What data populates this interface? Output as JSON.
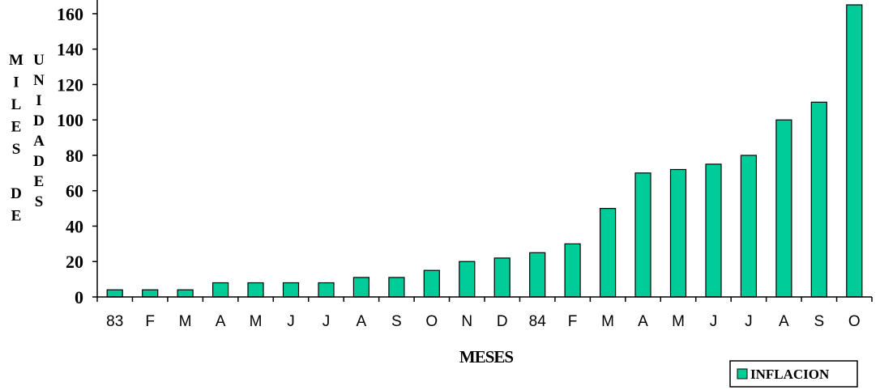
{
  "chart_data": {
    "type": "bar",
    "categories": [
      "83",
      "F",
      "M",
      "A",
      "M",
      "J",
      "J",
      "A",
      "S",
      "O",
      "N",
      "D",
      "84",
      "F",
      "M",
      "A",
      "M",
      "J",
      "J",
      "A",
      "S",
      "O"
    ],
    "series": [
      {
        "name": "INFLACION",
        "values": [
          4,
          4,
          4,
          8,
          8,
          8,
          8,
          11,
          11,
          15,
          20,
          22,
          25,
          30,
          50,
          70,
          72,
          75,
          80,
          100,
          110,
          165
        ],
        "color": "#00cc99"
      }
    ],
    "yticks": [
      0,
      20,
      40,
      60,
      80,
      100,
      120,
      140,
      160
    ],
    "ylim": [
      0,
      165
    ],
    "xlabel": "MESES",
    "ylabel_col1": [
      "M",
      "I",
      "L",
      "E",
      "S",
      "",
      "D",
      "E"
    ],
    "ylabel_col2": [
      "U",
      "N",
      "I",
      "D",
      "A",
      "D",
      "E",
      "S"
    ],
    "legend": {
      "position": "bottom-right",
      "label": "INFLACION"
    },
    "grid": false
  }
}
